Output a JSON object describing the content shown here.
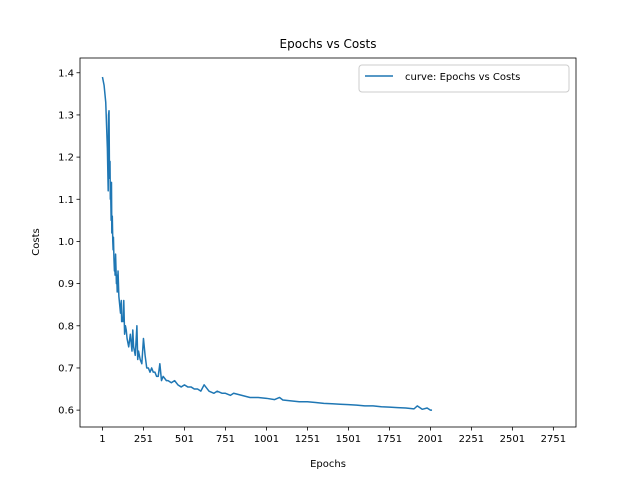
{
  "chart_data": {
    "type": "line",
    "title": "Epochs vs Costs",
    "xlabel": "Epochs",
    "ylabel": "Costs",
    "xlim": [
      -136,
      2889
    ],
    "ylim": [
      0.56,
      1.435
    ],
    "xticks": [
      1,
      251,
      501,
      751,
      1001,
      1251,
      1501,
      1751,
      2001,
      2251,
      2501,
      2751
    ],
    "yticks": [
      0.6,
      0.7,
      0.8,
      0.9,
      1.0,
      1.1,
      1.2,
      1.3,
      1.4
    ],
    "ytick_labels": [
      "0.6",
      "0.7",
      "0.8",
      "0.9",
      "1.0",
      "1.1",
      "1.2",
      "1.3",
      "1.4"
    ],
    "grid": false,
    "legend_position": "top-right",
    "series": [
      {
        "name": "curve: Epochs vs Costs",
        "color": "#1f77b4",
        "x": [
          1,
          11,
          21,
          31,
          36,
          38,
          41,
          44,
          47,
          49,
          51,
          54,
          56,
          58,
          61,
          64,
          66,
          68,
          71,
          74,
          76,
          78,
          81,
          84,
          86,
          88,
          91,
          96,
          101,
          106,
          111,
          116,
          118,
          121,
          126,
          131,
          136,
          141,
          146,
          151,
          161,
          171,
          181,
          186,
          191,
          201,
          211,
          216,
          221,
          231,
          241,
          251,
          261,
          271,
          281,
          291,
          301,
          311,
          321,
          331,
          341,
          351,
          361,
          371,
          381,
          391,
          401,
          421,
          441,
          461,
          481,
          501,
          521,
          541,
          561,
          581,
          601,
          621,
          651,
          681,
          701,
          731,
          751,
          781,
          801,
          851,
          901,
          951,
          1001,
          1051,
          1081,
          1101,
          1151,
          1201,
          1251,
          1301,
          1351,
          1401,
          1451,
          1501,
          1551,
          1601,
          1651,
          1701,
          1751,
          1801,
          1851,
          1901,
          1921,
          1951,
          1981,
          2001,
          2011
        ],
        "y": [
          1.39,
          1.37,
          1.33,
          1.22,
          1.12,
          1.3,
          1.31,
          1.15,
          1.19,
          1.1,
          1.12,
          1.05,
          1.14,
          1.02,
          1.06,
          1.0,
          0.98,
          1.01,
          0.96,
          0.93,
          0.95,
          0.92,
          0.97,
          0.93,
          0.9,
          0.92,
          0.88,
          0.93,
          0.87,
          0.85,
          0.83,
          0.86,
          0.81,
          0.82,
          0.81,
          0.86,
          0.78,
          0.8,
          0.79,
          0.77,
          0.75,
          0.78,
          0.74,
          0.79,
          0.75,
          0.73,
          0.8,
          0.72,
          0.74,
          0.72,
          0.71,
          0.77,
          0.73,
          0.7,
          0.7,
          0.69,
          0.7,
          0.69,
          0.69,
          0.68,
          0.68,
          0.71,
          0.67,
          0.68,
          0.675,
          0.67,
          0.67,
          0.665,
          0.67,
          0.66,
          0.655,
          0.66,
          0.655,
          0.655,
          0.65,
          0.65,
          0.645,
          0.66,
          0.645,
          0.64,
          0.645,
          0.64,
          0.64,
          0.635,
          0.64,
          0.635,
          0.63,
          0.63,
          0.628,
          0.625,
          0.63,
          0.624,
          0.622,
          0.62,
          0.62,
          0.618,
          0.616,
          0.615,
          0.614,
          0.613,
          0.612,
          0.61,
          0.61,
          0.608,
          0.607,
          0.606,
          0.605,
          0.603,
          0.61,
          0.602,
          0.605,
          0.6,
          0.6
        ]
      }
    ]
  }
}
